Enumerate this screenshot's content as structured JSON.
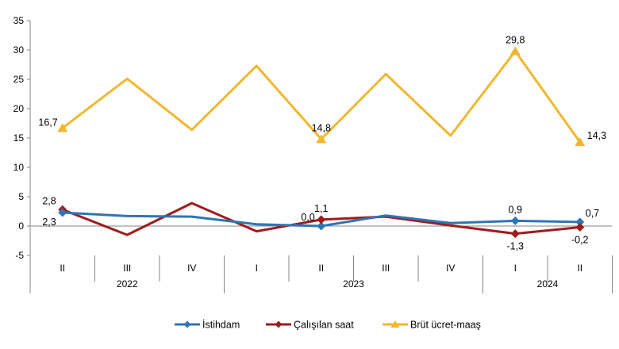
{
  "chart_data": {
    "type": "line",
    "quarters": [
      "II",
      "III",
      "IV",
      "I",
      "II",
      "III",
      "IV",
      "I",
      "II"
    ],
    "years": [
      {
        "label": "2022",
        "start": 0,
        "end": 2
      },
      {
        "label": "2023",
        "start": 3,
        "end": 6
      },
      {
        "label": "2024",
        "start": 7,
        "end": 8
      }
    ],
    "ylim": [
      -5,
      35
    ],
    "yticks": [
      35,
      30,
      25,
      20,
      15,
      10,
      5,
      0,
      -5
    ],
    "series": [
      {
        "name": "İstihdam",
        "color": "#2E75B6",
        "marker": "diamond",
        "values": [
          2.3,
          1.7,
          1.6,
          0.3,
          0.0,
          1.8,
          0.5,
          0.9,
          0.7
        ]
      },
      {
        "name": "Çalışılan saat",
        "color": "#A01C1C",
        "marker": "diamond",
        "values": [
          2.8,
          -1.5,
          3.9,
          -0.9,
          1.1,
          1.6,
          0.1,
          -1.3,
          -0.2
        ]
      },
      {
        "name": "Brüt ücret-maaş",
        "color": "#F2B72E",
        "marker": "triangle",
        "values": [
          16.7,
          25.1,
          16.4,
          27.3,
          14.8,
          25.9,
          15.4,
          29.8,
          14.3
        ]
      }
    ],
    "data_labels": [
      {
        "series": 2,
        "index": 0,
        "text": "16,7",
        "pos": "left"
      },
      {
        "series": 2,
        "index": 4,
        "text": "14,8",
        "pos": "above"
      },
      {
        "series": 2,
        "index": 7,
        "text": "29,8",
        "pos": "above"
      },
      {
        "series": 2,
        "index": 8,
        "text": "14,3",
        "pos": "right"
      },
      {
        "series": 1,
        "index": 0,
        "text": "2,8",
        "pos": "left-above"
      },
      {
        "series": 0,
        "index": 0,
        "text": "2,3",
        "pos": "left-below"
      },
      {
        "series": 0,
        "index": 4,
        "text": "0,0",
        "pos": "left-above"
      },
      {
        "series": 1,
        "index": 4,
        "text": "1,1",
        "pos": "above"
      },
      {
        "series": 0,
        "index": 7,
        "text": "0,9",
        "pos": "above"
      },
      {
        "series": 1,
        "index": 7,
        "text": "-1,3",
        "pos": "below"
      },
      {
        "series": 0,
        "index": 8,
        "text": "0,7",
        "pos": "right-above"
      },
      {
        "series": 1,
        "index": 8,
        "text": "-0,2",
        "pos": "below"
      }
    ],
    "legend": {
      "placement": "bottom"
    },
    "grid": false
  }
}
